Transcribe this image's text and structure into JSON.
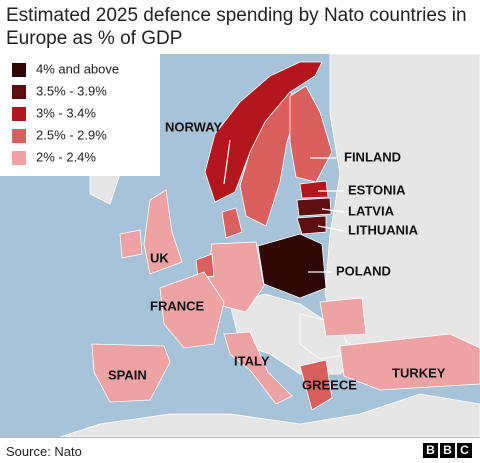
{
  "title": "Estimated 2025 defence spending by Nato countries in Europe as % of GDP",
  "legend": [
    {
      "label": "4% and above",
      "color": "#2d0806"
    },
    {
      "label": "3.5% - 3.9%",
      "color": "#5c0e10"
    },
    {
      "label": "3% - 3.4%",
      "color": "#b3161c"
    },
    {
      "label": "2.5% - 2.9%",
      "color": "#d9605e"
    },
    {
      "label": "2% - 2.4%",
      "color": "#eda3a3"
    }
  ],
  "labels": [
    "NORWAY",
    "FINLAND",
    "ESTONIA",
    "LATVIA",
    "LITHUANIA",
    "UK",
    "POLAND",
    "FRANCE",
    "SPAIN",
    "ITALY",
    "GREECE",
    "TURKEY"
  ],
  "source": "Source: Nato",
  "logo": [
    "B",
    "B",
    "C"
  ]
}
